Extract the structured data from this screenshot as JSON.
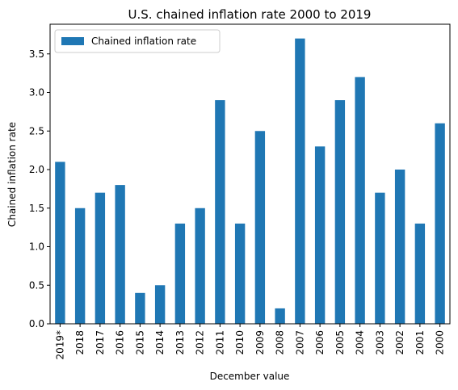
{
  "chart_data": {
    "type": "bar",
    "title": "U.S. chained inflation rate 2000 to 2019",
    "xlabel": "December value",
    "ylabel": "Chained inflation rate",
    "categories": [
      "2019*",
      "2018",
      "2017",
      "2016",
      "2015",
      "2014",
      "2013",
      "2012",
      "2011",
      "2010",
      "2009",
      "2008",
      "2007",
      "2006",
      "2005",
      "2004",
      "2003",
      "2002",
      "2001",
      "2000"
    ],
    "series": [
      {
        "name": "Chained inflation rate",
        "color": "#1f77b4",
        "values": [
          2.1,
          1.5,
          1.7,
          1.8,
          0.4,
          0.5,
          1.3,
          1.5,
          2.9,
          1.3,
          2.5,
          0.2,
          3.7,
          2.3,
          2.9,
          3.2,
          1.7,
          2.0,
          1.3,
          2.6
        ]
      }
    ],
    "ylim": [
      0,
      3.885
    ],
    "yticks": [
      "0.0",
      "0.5",
      "1.0",
      "1.5",
      "2.0",
      "2.5",
      "3.0",
      "3.5"
    ],
    "grid": false,
    "legend": "top-left"
  }
}
